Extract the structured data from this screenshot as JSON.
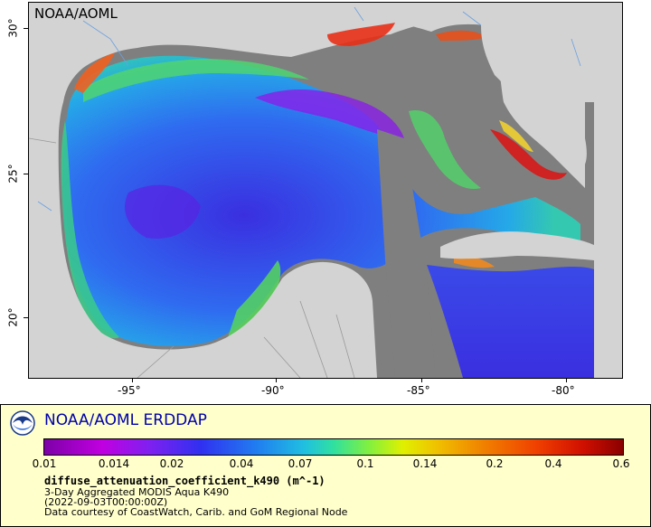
{
  "map": {
    "credit": "NOAA/AOML",
    "lon_ticks": [
      "-95°",
      "-90°",
      "-85°",
      "-80°"
    ],
    "lat_ticks": [
      "30°",
      "25°",
      "20°"
    ]
  },
  "legend": {
    "title": "NOAA/AOML ERDDAP",
    "colorbar_ticks": [
      "0.01",
      "0.014",
      "0.02",
      "0.04",
      "0.07",
      "0.1",
      "0.14",
      "0.2",
      "0.4",
      "0.6"
    ],
    "variable": "diffuse_attenuation_coefficient_k490 (m^-1)",
    "description": "3-Day Aggregated MODIS Aqua K490",
    "time": "(2022-09-03T00:00:00Z)",
    "attribution": "Data courtesy of CoastWatch, Carib. and GoM Regional Node"
  },
  "colors": {
    "land": "#d3d3d3",
    "no_data": "#7f7f7f",
    "legend_background": "#ffffcc",
    "title_blue": "#0000aa"
  }
}
